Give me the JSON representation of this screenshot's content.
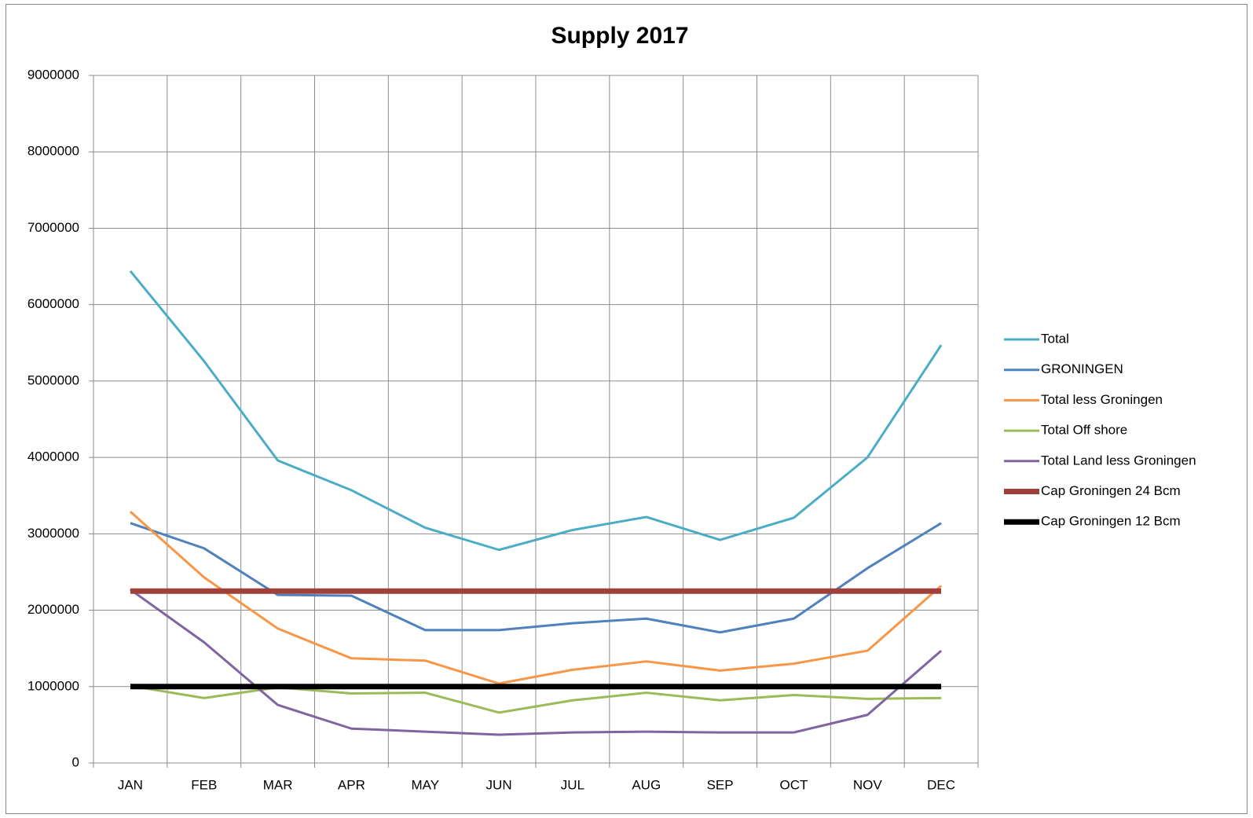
{
  "chart_data": {
    "type": "line",
    "title": "Supply 2017",
    "categories": [
      "JAN",
      "FEB",
      "MAR",
      "APR",
      "MAY",
      "JUN",
      "JUL",
      "AUG",
      "SEP",
      "OCT",
      "NOV",
      "DEC"
    ],
    "series": [
      {
        "name": "Total",
        "color": "#4bacc6",
        "width": 3,
        "values": [
          6440000,
          5260000,
          3960000,
          3570000,
          3080000,
          2790000,
          3050000,
          3220000,
          2920000,
          3210000,
          4000000,
          5470000
        ]
      },
      {
        "name": "GRONINGEN",
        "color": "#4f81bd",
        "width": 3,
        "values": [
          3140000,
          2810000,
          2200000,
          2190000,
          1740000,
          1740000,
          1830000,
          1890000,
          1710000,
          1890000,
          2550000,
          3140000
        ]
      },
      {
        "name": "Total less Groningen",
        "color": "#f79646",
        "width": 3,
        "values": [
          3290000,
          2430000,
          1760000,
          1370000,
          1340000,
          1040000,
          1220000,
          1330000,
          1210000,
          1300000,
          1470000,
          2320000
        ]
      },
      {
        "name": "Total Off shore",
        "color": "#9bbb59",
        "width": 3,
        "values": [
          1010000,
          850000,
          990000,
          910000,
          920000,
          660000,
          820000,
          920000,
          820000,
          890000,
          840000,
          850000
        ]
      },
      {
        "name": "Total Land less Groningen",
        "color": "#8064a2",
        "width": 3,
        "values": [
          2270000,
          1580000,
          760000,
          450000,
          410000,
          370000,
          400000,
          410000,
          400000,
          400000,
          630000,
          1470000
        ]
      },
      {
        "name": "Cap Groningen 24 Bcm",
        "color": "#a0403b",
        "width": 7,
        "values": [
          2250000,
          2250000,
          2250000,
          2250000,
          2250000,
          2250000,
          2250000,
          2250000,
          2250000,
          2250000,
          2250000,
          2250000
        ]
      },
      {
        "name": "Cap Groningen 12 Bcm",
        "color": "#000000",
        "width": 7,
        "values": [
          1000000,
          1000000,
          1000000,
          1000000,
          1000000,
          1000000,
          1000000,
          1000000,
          1000000,
          1000000,
          1000000,
          1000000
        ]
      }
    ],
    "ylim": [
      0,
      9000000
    ],
    "yticks": [
      0,
      1000000,
      2000000,
      3000000,
      4000000,
      5000000,
      6000000,
      7000000,
      8000000,
      9000000
    ],
    "grid": true,
    "legend": "right"
  }
}
